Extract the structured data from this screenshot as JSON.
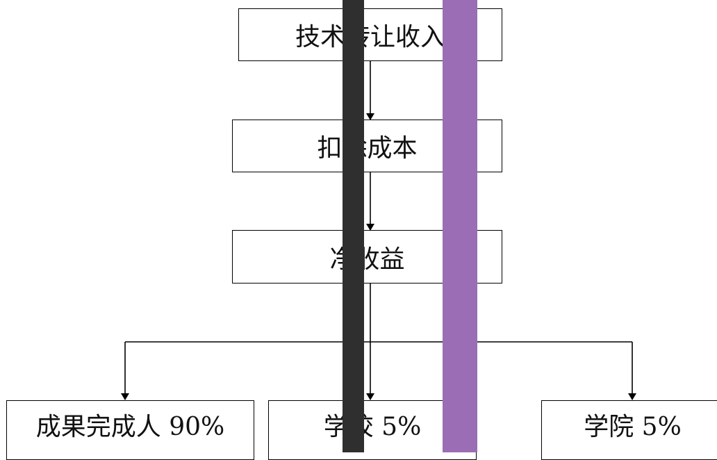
{
  "flowchart": {
    "top": "技术转让收入",
    "step2": "扣除成本",
    "step3": "净收益",
    "branches": [
      "成果完成人 90%",
      "学校 5%",
      "学院 5%"
    ]
  },
  "overlay_colors": {
    "dark_bar": "#2f2f2f",
    "purple_bar": "#9b6db4"
  }
}
